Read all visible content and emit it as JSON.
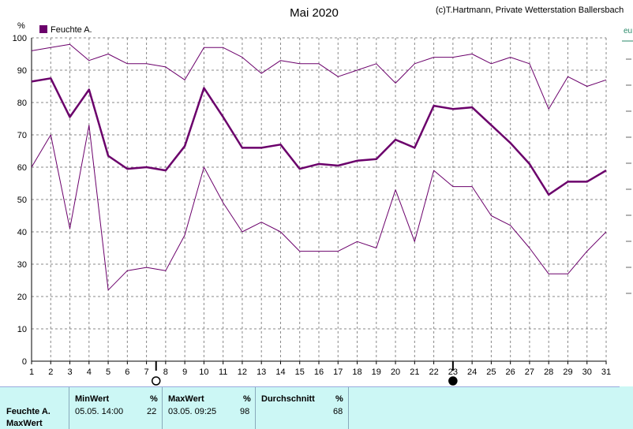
{
  "header": {
    "title": "Mai 2020",
    "credit": "(c)T.Hartmann, Private Wetterstation Ballersbach",
    "right_axis_fragment": "eu"
  },
  "chart_data": {
    "type": "line",
    "title": "Mai 2020",
    "ylabel": "%",
    "ylim": [
      0,
      100
    ],
    "yticks": [
      0,
      10,
      20,
      30,
      40,
      50,
      60,
      70,
      80,
      90,
      100
    ],
    "x": [
      1,
      2,
      3,
      4,
      5,
      6,
      7,
      8,
      9,
      10,
      11,
      12,
      13,
      14,
      15,
      16,
      17,
      18,
      19,
      20,
      21,
      22,
      23,
      24,
      25,
      26,
      27,
      28,
      29,
      30,
      31
    ],
    "legend": {
      "label": "Feuchte A.",
      "placement": "top-left",
      "color": "#6b006b"
    },
    "series": [
      {
        "name": "Feuchte A.",
        "role": "max",
        "color": "#6b006b",
        "values": [
          96,
          97,
          98,
          93,
          95,
          92,
          92,
          91,
          87,
          97,
          97,
          94,
          89,
          93,
          92,
          92,
          88,
          90,
          92,
          86,
          92,
          94,
          94,
          95,
          92,
          94,
          92,
          78,
          88,
          85,
          87
        ]
      },
      {
        "name": "Feuchte A.",
        "role": "mean",
        "color": "#6b006b",
        "values": [
          86.5,
          87.5,
          75.5,
          84,
          63.5,
          59.5,
          60,
          59,
          66.5,
          84.5,
          75.5,
          66,
          66,
          67,
          59.5,
          61,
          60.5,
          62,
          62.5,
          68.5,
          66,
          79,
          78,
          78.5,
          73,
          67.5,
          61,
          51.5,
          55.5,
          55.5,
          59
        ]
      },
      {
        "name": "Feuchte A.",
        "role": "min",
        "color": "#6b006b",
        "values": [
          60,
          70,
          41,
          73,
          22,
          28,
          29,
          28,
          39,
          60,
          49,
          40,
          43,
          40,
          34,
          34,
          34,
          37,
          35,
          53,
          37,
          59,
          54,
          54,
          45,
          42,
          35,
          27,
          27,
          34,
          40
        ]
      }
    ],
    "markers": [
      {
        "day": 7.5,
        "kind": "open-circle"
      },
      {
        "day": 23,
        "kind": "filled-circle"
      }
    ]
  },
  "summary": {
    "row_label": "Feuchte A.",
    "row_label2": "MaxWert",
    "min": {
      "header": "MinWert",
      "unit": "%",
      "datetime": "05.05.  14:00",
      "value": "22"
    },
    "max": {
      "header": "MaxWert",
      "unit": "%",
      "datetime": "03.05.  09:25",
      "value": "98"
    },
    "avg": {
      "header": "Durchschnitt",
      "unit": "%",
      "value": "68"
    }
  }
}
